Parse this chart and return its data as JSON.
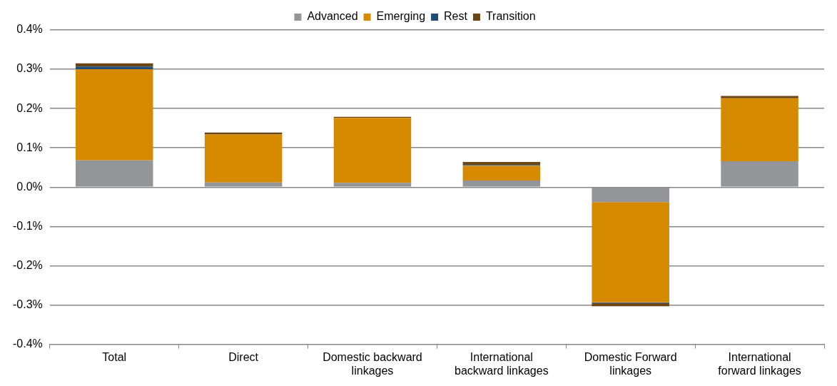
{
  "chart_data": {
    "type": "bar",
    "stacked": true,
    "categories": [
      "Total",
      "Direct",
      "Domestic backward linkages",
      "International backward linkages",
      "Domestic Forward linkages",
      "International forward linkages"
    ],
    "series": [
      {
        "name": "Advanced",
        "color": "#939598",
        "values": [
          0.068,
          0.012,
          0.011,
          0.017,
          -0.038,
          0.066
        ]
      },
      {
        "name": "Emerging",
        "color": "#d68a00",
        "values": [
          0.232,
          0.122,
          0.165,
          0.037,
          -0.255,
          0.16
        ]
      },
      {
        "name": "Rest",
        "color": "#1f4e79",
        "values": [
          0.007,
          null,
          null,
          0.002,
          -0.002,
          null
        ]
      },
      {
        "name": "Transition",
        "color": "#6b4513",
        "values": [
          0.008,
          0.005,
          0.003,
          0.008,
          -0.008,
          0.006
        ]
      }
    ],
    "ylim": [
      -0.4,
      0.4
    ],
    "yticks": [
      {
        "value": -0.4,
        "label": "-0.4%"
      },
      {
        "value": -0.3,
        "label": "-0.3%"
      },
      {
        "value": -0.2,
        "label": "-0.2%"
      },
      {
        "value": -0.1,
        "label": "-0.1%"
      },
      {
        "value": 0,
        "label": "0.0%"
      },
      {
        "value": 0.1,
        "label": "0.1%"
      },
      {
        "value": 0.2,
        "label": "0.2%"
      },
      {
        "value": 0.3,
        "label": "0.3%"
      },
      {
        "value": 0.4,
        "label": "0.4%"
      }
    ],
    "grid": "y",
    "legend": "top"
  }
}
